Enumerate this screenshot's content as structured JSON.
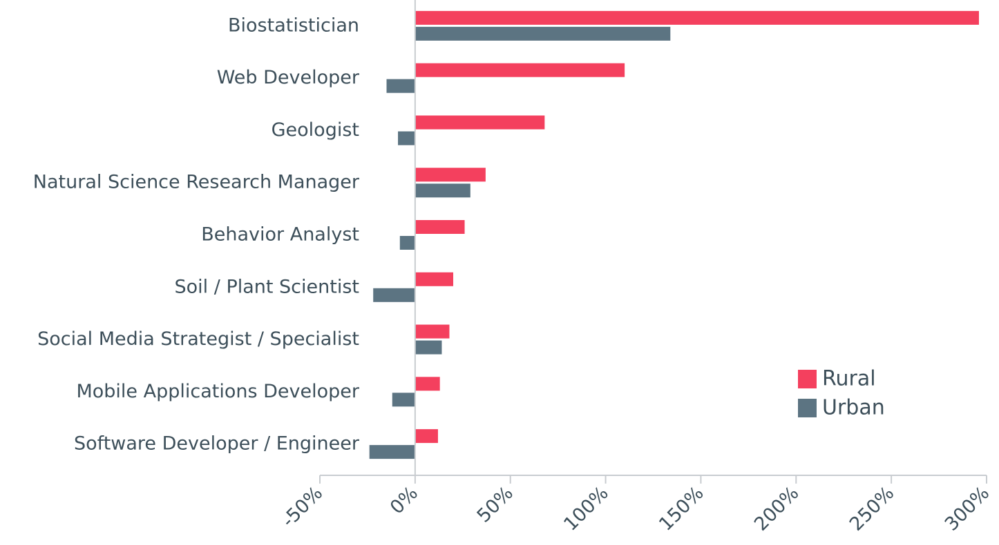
{
  "chart_data": {
    "type": "bar",
    "orientation": "horizontal",
    "categories": [
      "Biostatistician",
      "Web Developer",
      "Geologist",
      "Natural Science Research Manager",
      "Behavior Analyst",
      "Soil / Plant Scientist",
      "Social Media Strategist / Specialist",
      "Mobile Applications Developer",
      "Software Developer / Engineer"
    ],
    "series": [
      {
        "name": "Rural",
        "color": "#f4405e",
        "values": [
          296,
          110,
          68,
          37,
          26,
          20,
          18,
          13,
          12
        ]
      },
      {
        "name": "Urban",
        "color": "#5c7482",
        "values": [
          134,
          -15,
          -9,
          29,
          -8,
          -22,
          14,
          -12,
          -24
        ]
      }
    ],
    "xlim": [
      -50,
      300
    ],
    "xticks": [
      {
        "value": -50,
        "label": "-50%"
      },
      {
        "value": 0,
        "label": "0%"
      },
      {
        "value": 50,
        "label": "50%"
      },
      {
        "value": 100,
        "label": "100%"
      },
      {
        "value": 150,
        "label": "150%"
      },
      {
        "value": 200,
        "label": "200%"
      },
      {
        "value": 250,
        "label": "250%"
      },
      {
        "value": 300,
        "label": "300%"
      }
    ],
    "legend": "lower right",
    "grid": false
  }
}
